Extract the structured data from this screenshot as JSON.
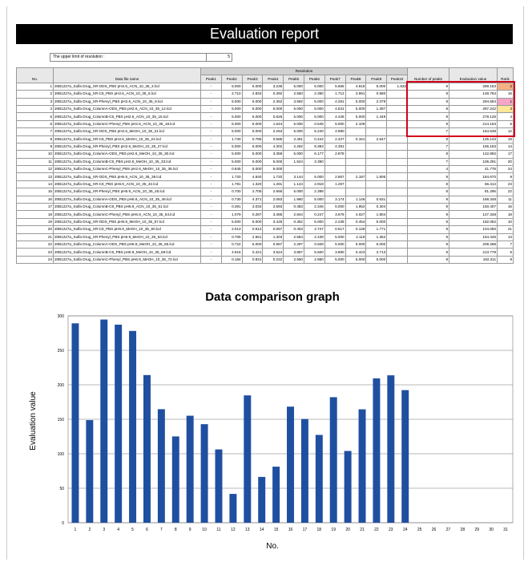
{
  "header": {
    "title": "Evaluation report"
  },
  "upper_limit": {
    "label": "The upper limit of resolution  :",
    "value": "5"
  },
  "table": {
    "group_header": "Resolution",
    "columns": [
      "No.",
      "Data file name",
      "Peak1",
      "Peak2",
      "Peak3",
      "Peak4",
      "Peak5",
      "Peak6",
      "Peak7",
      "Peak8",
      "Peak9",
      "Peak10",
      "Number of peaks",
      "Evaluation value",
      "Rank"
    ],
    "rows": [
      {
        "cells": [
          "1",
          "20B1227a_Sulfa Drug_XR-ODS_PBS pH2.6_ACN_10_35_3.lcd",
          "-",
          "5.000",
          "5.000",
          "3.235",
          "5.000",
          "5.000",
          "5.665",
          "4.815",
          "5.000",
          "1.532",
          "9",
          "289.183",
          "2"
        ],
        "highlight": "#f4b183"
      },
      {
        "cells": [
          "2",
          "20B1227a_Sulfa Drug_XR-C8_PBS pH2.6_ACN_10_35_6.lcd",
          "-",
          "2.710",
          "2.834",
          "0.392",
          "2.560",
          "2.390",
          "1.712",
          "3.991",
          "0.580",
          null,
          "9",
          "148.794",
          "16"
        ]
      },
      {
        "cells": [
          "3",
          "20B1227a_Sulfa Drug_XR-Phenyl_PBS pH2.6_ACN_10_35_9.lcd",
          "-",
          "5.000",
          "5.000",
          "2.352",
          "3.692",
          "5.000",
          "4.281",
          "5.000",
          "2.379",
          null,
          "9",
          "294.684",
          "1"
        ],
        "highlight": "#f4a6c8"
      },
      {
        "cells": [
          "4",
          "20B1227a_Sulfa Drug_ColumnA-ODS_PBS pH2.6_ACN_10_35_12.lcd",
          "-",
          "5.000",
          "5.000",
          "5.000",
          "5.000",
          "5.000",
          "4.631",
          "5.000",
          "1.397",
          null,
          "8",
          "287.242",
          "3"
        ],
        "highlight": "#ffe699"
      },
      {
        "cells": [
          "5",
          "20B1227a_Sulfa Drug_ColumnB-C8_PBS pH2.6_ACN_10_35_15.lcd",
          "-",
          "5.000",
          "5.000",
          "0.626",
          "5.000",
          "5.000",
          "4.428",
          "5.000",
          "1.449",
          null,
          "9",
          "278.126",
          "4"
        ]
      },
      {
        "cells": [
          "6",
          "20B1227a_Sulfa Drug_ColumnC-Phenyl_PBS pH2.6_ACN_10_35_18.lcd",
          "-",
          "5.000",
          "5.000",
          "1.644",
          "5.000",
          "0.645",
          "5.000",
          "2.109",
          null,
          null,
          "9",
          "214.163",
          "5"
        ]
      },
      {
        "cells": [
          "7",
          "20B1227a_Sulfa Drug_XR-ODS_PBS pH2.6_MeOH_10_35_21.lcd",
          "-",
          "5.000",
          "5.000",
          "2.294",
          "5.000",
          "5.240",
          "4.980",
          null,
          null,
          null,
          "7",
          "164.639",
          "12"
        ]
      },
      {
        "cells": [
          "8",
          "20B1227a_Sulfa Drug_XR-C8_PBS pH2.6_MeOH_10_35_24.lcd",
          "-",
          "1.730",
          "0.785",
          "0.585",
          "2.451",
          "0.444",
          "2.427",
          "0.151",
          "2.547",
          null,
          "9",
          "125.143",
          "19"
        ]
      },
      {
        "cells": [
          "9",
          "20B1227a_Sulfa Drug_XR-Phenyl_PBS pH2.6_MeOH_10_35_27.lcd",
          "-",
          "5.000",
          "5.000",
          "4.302",
          "2.292",
          "8.383",
          "4.391",
          null,
          null,
          null,
          "7",
          "155.183",
          "14"
        ]
      },
      {
        "cells": [
          "10",
          "20B1227a_Sulfa Drug_ColumnA-ODS_PBS pH2.6_MeOH_10_35_30.lcd",
          "-",
          "5.000",
          "5.000",
          "3.358",
          "5.000",
          "6.177",
          "2.878",
          null,
          null,
          null,
          "8",
          "142.892",
          "17"
        ]
      },
      {
        "cells": [
          "11",
          "20B1227a_Sulfa Drug_ColumnB-C8_PBS pH2.6_MeOH_10_35_33.lcd",
          "-",
          "5.000",
          "5.000",
          "5.000",
          "1.524",
          "3.390",
          null,
          null,
          null,
          null,
          "7",
          "106.291",
          "20"
        ]
      },
      {
        "cells": [
          "12",
          "20B1227a_Sulfa Drug_ColumnC-Phenyl_PBS pH2.6_MeOH_10_35_36.lcd",
          "-",
          "0.845",
          "5.000",
          "5.000",
          null,
          null,
          null,
          null,
          null,
          null,
          "4",
          "41.778",
          "24"
        ]
      },
      {
        "cells": [
          "13",
          "20B1227a_Sulfa Drug_XR-ODS_PBS pH6.9_ACN_10_35_39.lcd",
          "-",
          "1.720",
          "4.840",
          "1.720",
          "3.144",
          "5.000",
          "2.867",
          "2.187",
          "1.806",
          null,
          "9",
          "184.670",
          "9"
        ]
      },
      {
        "cells": [
          "14",
          "20B1227a_Sulfa Drug_XR-C8_PBS pH6.9_ACN_10_35_42.lcd",
          "-",
          "1.781",
          "1.320",
          "1.281",
          "1.144",
          "2.918",
          "1.267",
          null,
          null,
          null,
          "8",
          "66.414",
          "23"
        ]
      },
      {
        "cells": [
          "15",
          "20B1227a_Sulfa Drug_XR-Phenyl_PBS pH6.9_ACN_10_35_45.lcd",
          "-",
          "0.700",
          "2.705",
          "2.666",
          "5.000",
          "2.398",
          null,
          null,
          null,
          null,
          "8",
          "81.295",
          "22"
        ]
      },
      {
        "cells": [
          "16",
          "20B1227a_Sulfa Drug_ColumnA-ODS_PBS pH6.9_ACN_10_35_48.lcd",
          "-",
          "0.730",
          "4.371",
          "2.083",
          "1.960",
          "5.000",
          "3.174",
          "1.146",
          "0.631",
          null,
          "9",
          "168.348",
          "11"
        ]
      },
      {
        "cells": [
          "17",
          "20B1227a_Sulfa Drug_ColumnB-C8_PBS pH6.9_ACN_10_35_51.lcd",
          "-",
          "0.391",
          "3.034",
          "2.593",
          "0.483",
          "2.345",
          "5.000",
          "1.952",
          "0.304",
          null,
          "9",
          "150.407",
          "15"
        ]
      },
      {
        "cells": [
          "18",
          "20B1227a_Sulfa Drug_ColumnC-Phenyl_PBS pH6.9_ACN_10_35_54.lcd",
          "-",
          "1.079",
          "0.287",
          "3.485",
          "2.844",
          "0.247",
          "3.679",
          "4.027",
          "1.804",
          null,
          "9",
          "127.348",
          "18"
        ]
      },
      {
        "cells": [
          "19",
          "20B1227a_Sulfa Drug_XR-ODS_PBS pH6.9_MeOH_10_35_57.lcd",
          "-",
          "5.000",
          "5.000",
          "3.425",
          "0.352",
          "5.000",
          "2.239",
          "0.454",
          "5.000",
          null,
          "9",
          "182.062",
          "10"
        ]
      },
      {
        "cells": [
          "20",
          "20B1227a_Sulfa Drug_XR-C8_PBS pH6.9_MeOH_10_35_60.lcd",
          "-",
          "2.013",
          "0.512",
          "0.057",
          "0.403",
          "4.747",
          "0.517",
          "0.128",
          "1.771",
          null,
          "9",
          "104.050",
          "21"
        ]
      },
      {
        "cells": [
          "21",
          "20B1227a_Sulfa Drug_XR-Phenyl_PBS pH6.9_MeOH_10_35_63.lcd",
          "-",
          "0.706",
          "2.561",
          "1.303",
          "2.584",
          "2.439",
          "5.000",
          "2.119",
          "1.362",
          null,
          "9",
          "164.445",
          "13"
        ]
      },
      {
        "cells": [
          "22",
          "20B1227a_Sulfa Drug_ColumnA-ODS_PBS pH6.9_MeOH_10_35_66.lcd",
          "-",
          "0.722",
          "5.000",
          "0.967",
          "2.297",
          "0.928",
          "5.000",
          "5.000",
          "5.000",
          null,
          "9",
          "209.288",
          "7"
        ]
      },
      {
        "cells": [
          "23",
          "20B1227a_Sulfa Drug_ColumnB-C8_PBS pH6.9_MeOH_10_35_69.lcd",
          "-",
          "4.916",
          "0.421",
          "3.524",
          "3.867",
          "5.600",
          "3.890",
          "0.423",
          "3.713",
          null,
          "9",
          "213.778",
          "6"
        ]
      },
      {
        "cells": [
          "24",
          "20B1227a_Sulfa Drug_ColumnC-Phenyl_PBS pH6.9_MeOH_10_35_72.lcd",
          "-",
          "0.184",
          "0.831",
          "0.222",
          "2.550",
          "2.980",
          "5.000",
          "5.000",
          "5.000",
          null,
          "9",
          "192.311",
          "8"
        ]
      }
    ]
  },
  "chart_data": {
    "type": "bar",
    "title": "Data comparison graph",
    "x_label": "No.",
    "y_label": "Evaluation value",
    "color": "#1f4fa0",
    "grid": true,
    "categories": [
      1,
      2,
      3,
      4,
      5,
      6,
      7,
      8,
      9,
      10,
      11,
      12,
      13,
      14,
      15,
      16,
      17,
      18,
      19,
      20,
      21,
      22,
      23,
      24,
      25,
      26,
      27,
      28,
      29,
      30,
      31
    ],
    "values": [
      289.183,
      148.794,
      294.684,
      287.242,
      278.126,
      214.163,
      164.639,
      125.143,
      155.183,
      142.892,
      106.291,
      41.778,
      184.67,
      66.414,
      81.295,
      168.348,
      150.407,
      127.348,
      182.062,
      104.05,
      164.445,
      209.288,
      213.778,
      192.311,
      null,
      null,
      null,
      null,
      null,
      null,
      null
    ],
    "ylim": [
      0,
      300
    ],
    "yticks": [
      0,
      50,
      100,
      150,
      200,
      250,
      300
    ]
  }
}
